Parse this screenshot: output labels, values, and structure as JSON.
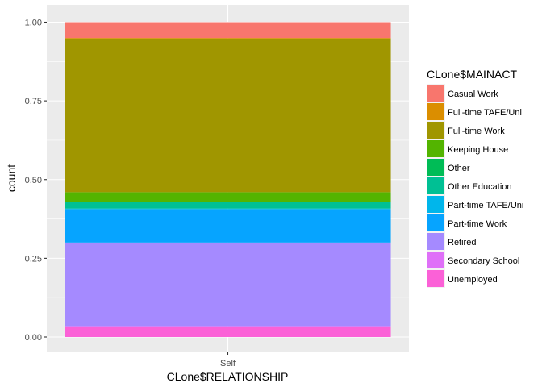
{
  "chart_data": {
    "type": "bar",
    "stacked": true,
    "position": "fill",
    "categories": [
      "Self"
    ],
    "xlabel": "CLone$RELATIONSHIP",
    "ylabel": "count",
    "ylim": [
      0,
      1
    ],
    "yticks": [
      "0.00",
      "0.25",
      "0.50",
      "0.75",
      "1.00"
    ],
    "grid": true,
    "legend_title": "CLone$MAINACT",
    "legend_position": "right",
    "series": [
      {
        "name": "Casual Work",
        "color": "#F8766D",
        "values": [
          0.05
        ]
      },
      {
        "name": "Full-time TAFE/Uni",
        "color": "#DB8E00",
        "values": [
          0.002
        ]
      },
      {
        "name": "Full-time Work",
        "color": "#A09600",
        "values": [
          0.488
        ]
      },
      {
        "name": "Keeping House",
        "color": "#53B400",
        "values": [
          0.03
        ]
      },
      {
        "name": "Other",
        "color": "#00BC56",
        "values": [
          0.002
        ]
      },
      {
        "name": "Other Education",
        "color": "#00C094",
        "values": [
          0.02
        ]
      },
      {
        "name": "Part-time TAFE/Uni",
        "color": "#00B6EB",
        "values": [
          0.003
        ]
      },
      {
        "name": "Part-time Work",
        "color": "#06A4FF",
        "values": [
          0.105
        ]
      },
      {
        "name": "Retired",
        "color": "#A58AFF",
        "values": [
          0.265
        ]
      },
      {
        "name": "Secondary School",
        "color": "#DF70F8",
        "values": [
          0.002
        ]
      },
      {
        "name": "Unemployed",
        "color": "#FB61D7",
        "values": [
          0.033
        ]
      }
    ]
  }
}
